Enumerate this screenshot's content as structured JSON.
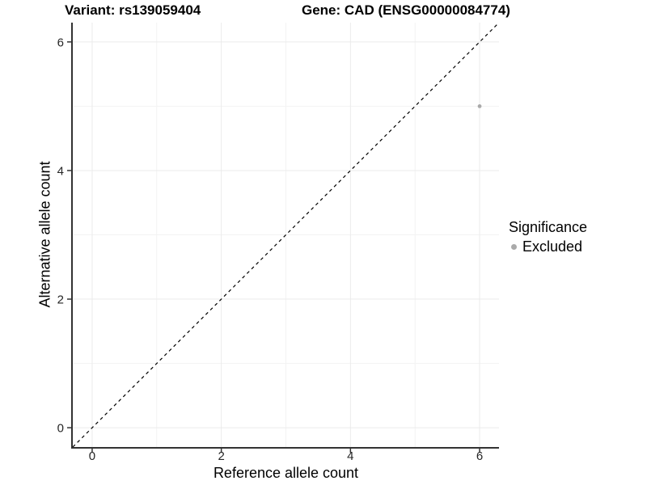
{
  "chart_data": {
    "type": "scatter",
    "title_left": "Variant: rs139059404",
    "title_right": "Gene: CAD (ENSG00000084774)",
    "xlabel": "Reference allele count",
    "ylabel": "Alternative allele count",
    "xlim": [
      -0.3,
      6.3
    ],
    "ylim": [
      -0.3,
      6.3
    ],
    "x_ticks": [
      0,
      2,
      4,
      6
    ],
    "y_ticks": [
      0,
      2,
      4,
      6
    ],
    "x_minor": [
      1,
      3,
      5
    ],
    "y_minor": [
      1,
      3,
      5
    ],
    "grid": true,
    "reference_line": {
      "kind": "identity",
      "slope": 1,
      "intercept": 0,
      "style": "dashed",
      "color": "#000000"
    },
    "series": [
      {
        "name": "Excluded",
        "marker": "circle",
        "color": "#aaaaaa",
        "points": [
          [
            6,
            5
          ]
        ]
      }
    ],
    "legend": {
      "title": "Significance",
      "position": "right",
      "items": [
        {
          "label": "Excluded",
          "color": "#aaaaaa"
        }
      ]
    },
    "colors": {
      "background": "#ffffff",
      "grid_major": "#ebebeb",
      "grid_minor": "#f3f3f3",
      "axis_line": "#333333",
      "tick_label": "#262626",
      "point": "#aaaaaa"
    }
  }
}
